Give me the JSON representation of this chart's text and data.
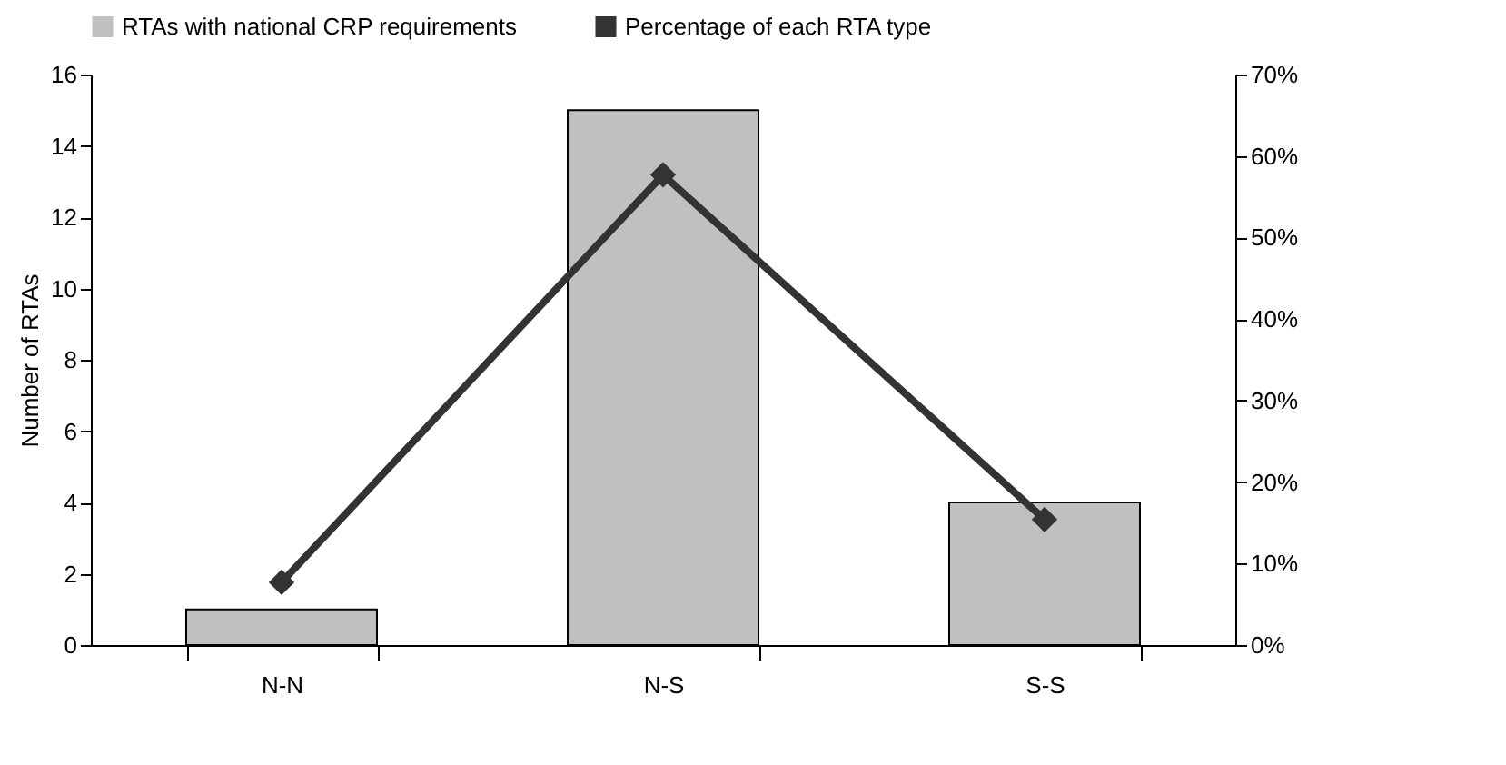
{
  "chart_data": {
    "type": "bar",
    "categories": [
      "N-N",
      "N-S",
      "S-S"
    ],
    "series": [
      {
        "name": "RTAs with national CRP requirements",
        "color": "#c0c0c0",
        "values": [
          1,
          15,
          4
        ]
      },
      {
        "name": "Percentage of each RTA type",
        "type": "line",
        "axis": "y2",
        "color": "#333333",
        "values": [
          7.7,
          57.7,
          15.4
        ]
      }
    ],
    "ylabel": "Number of RTAs",
    "ylim": [
      0,
      16
    ],
    "yticks": [
      0,
      2,
      4,
      6,
      8,
      10,
      12,
      14,
      16
    ],
    "y2lim": [
      0,
      70
    ],
    "y2ticks": [
      {
        "value": 0,
        "label": "0%"
      },
      {
        "value": 10,
        "label": "10%"
      },
      {
        "value": 20,
        "label": "20%"
      },
      {
        "value": 30,
        "label": "30%"
      },
      {
        "value": 40,
        "label": "40%"
      },
      {
        "value": 50,
        "label": "50%"
      },
      {
        "value": 60,
        "label": "60%"
      },
      {
        "value": 70,
        "label": "70%"
      }
    ],
    "legend": "top",
    "marker": "diamond",
    "grid": false
  }
}
